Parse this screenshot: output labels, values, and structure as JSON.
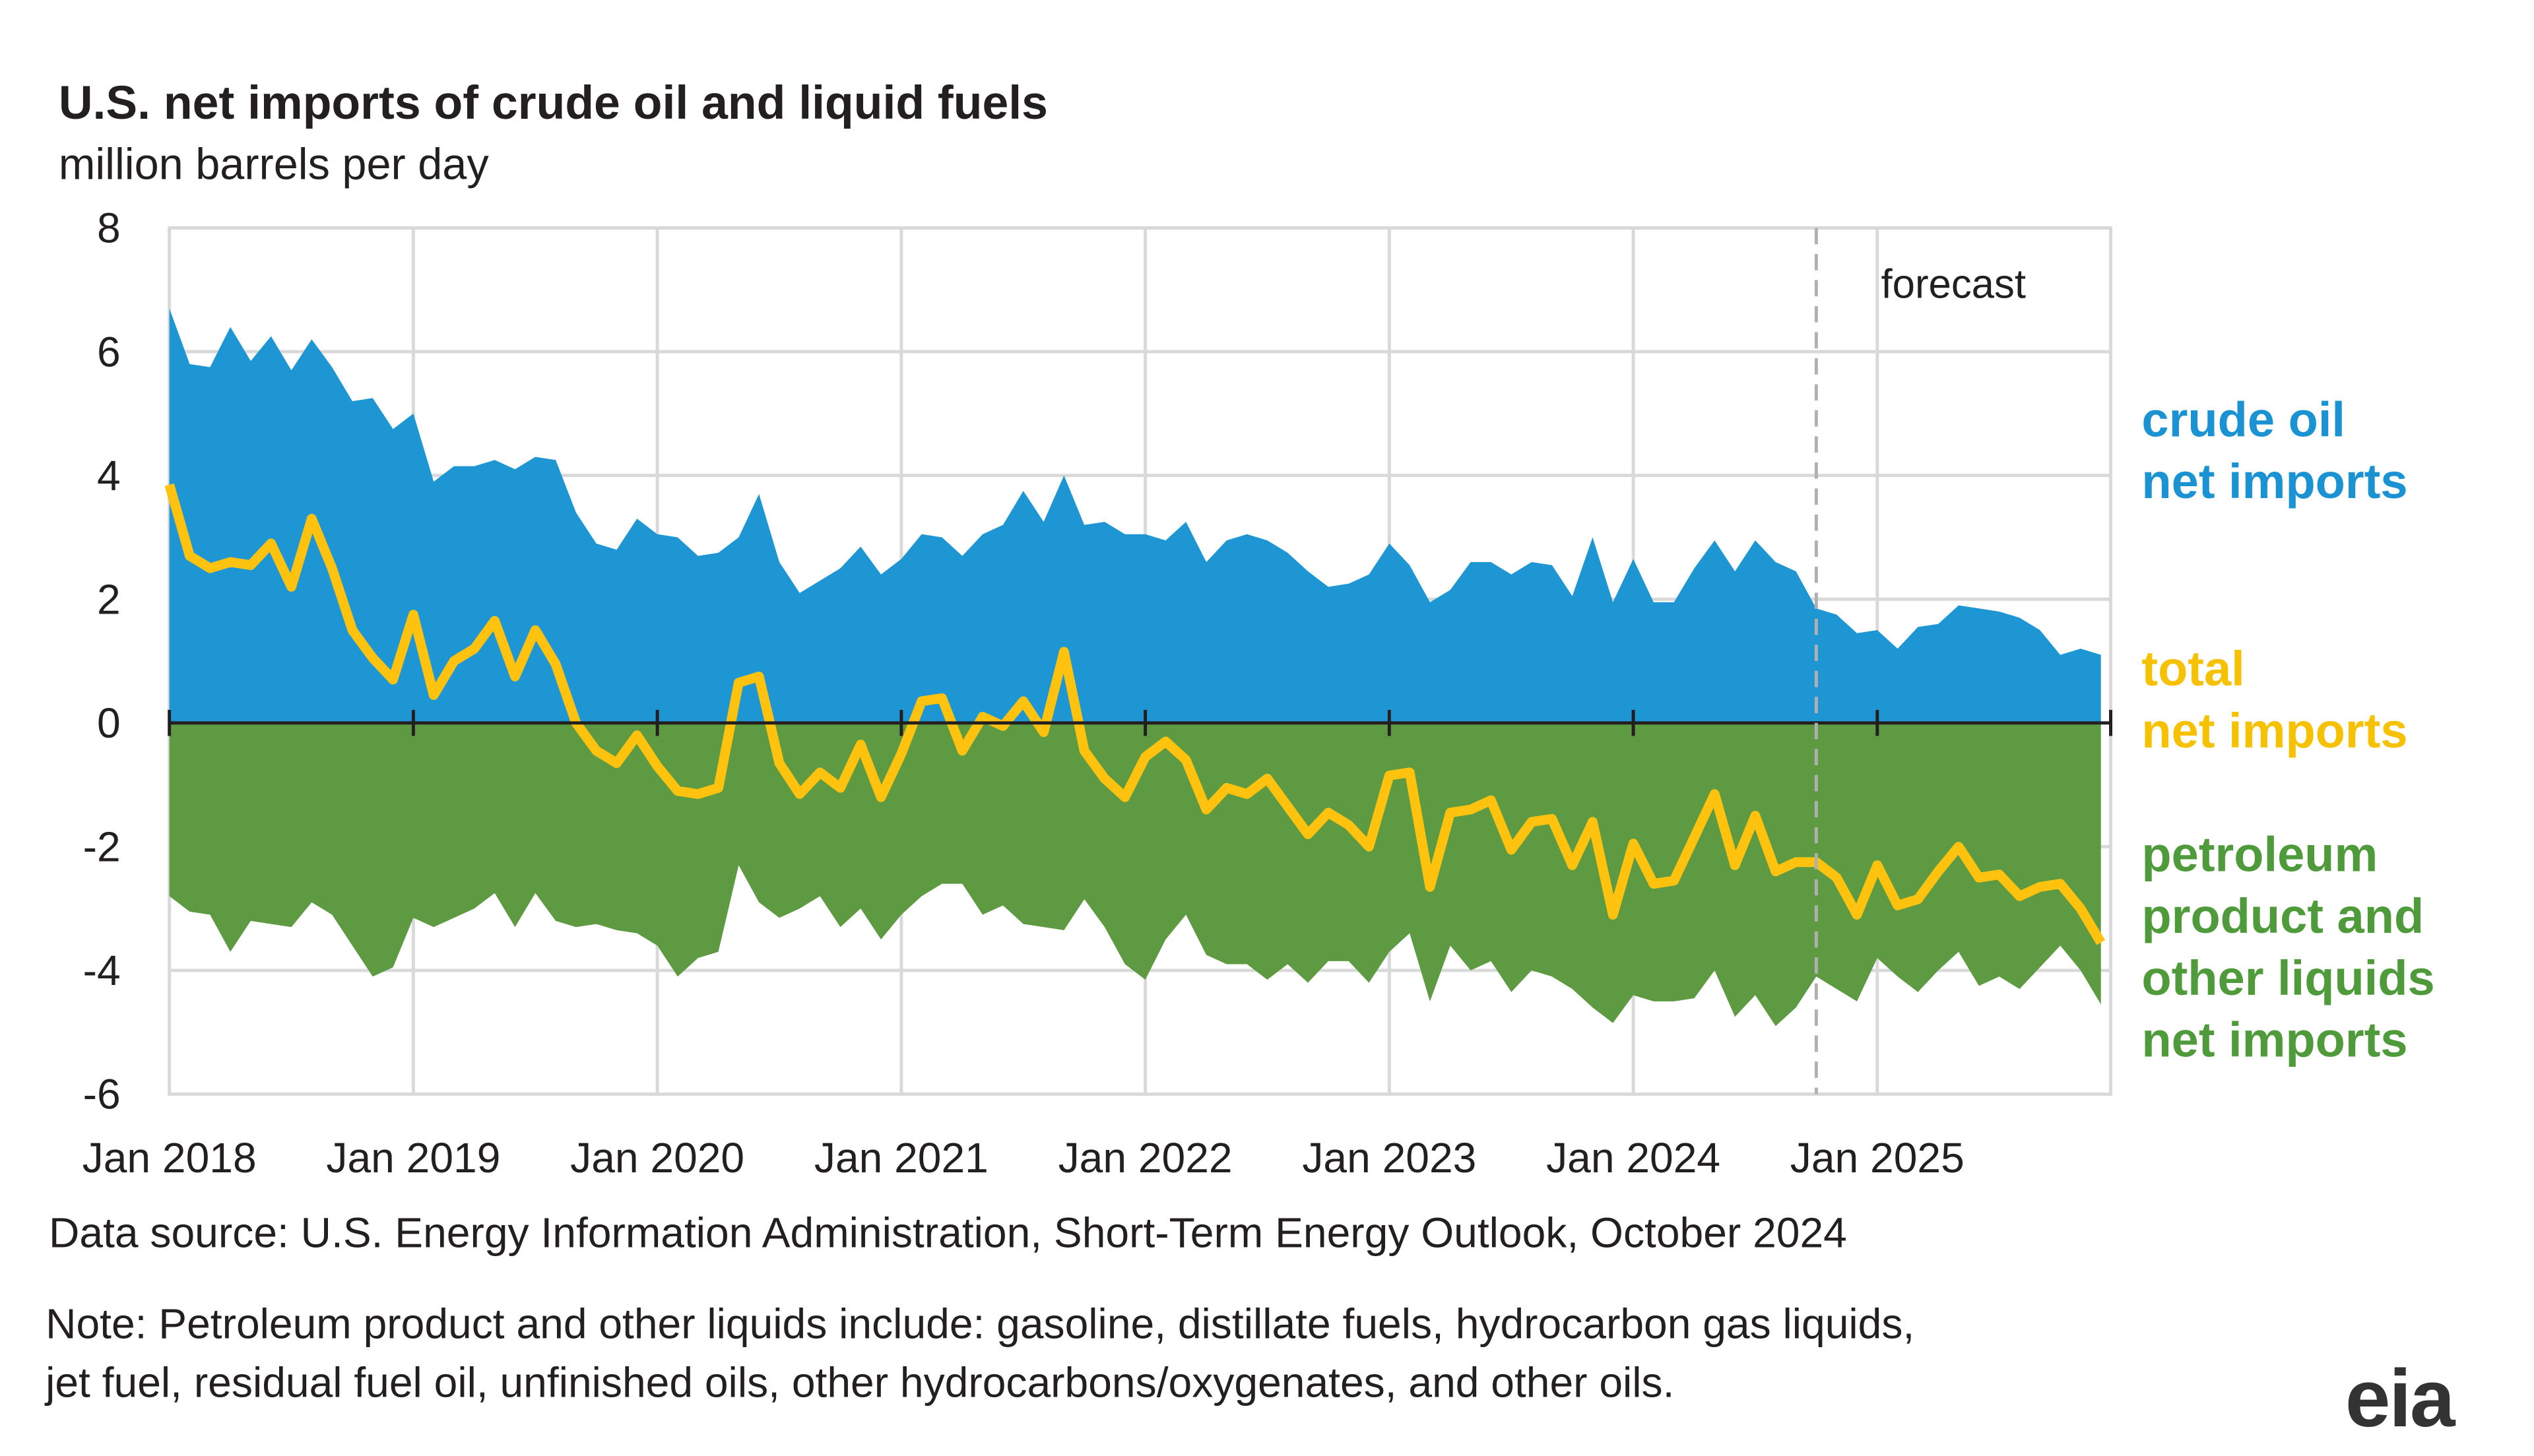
{
  "chart_data": {
    "type": "area-line",
    "title": "U.S. net imports of crude oil and liquid fuels",
    "subtitle": "million barrels per day",
    "annotation": "forecast",
    "forecast_start": "2024-10",
    "source": "Data source: U.S. Energy Information Administration, Short-Term Energy Outlook, October 2024",
    "note": "Note: Petroleum product and other liquids include: gasoline, distillate fuels, hydrocarbon gas liquids,\njet fuel, residual fuel oil, unfinished oils, other hydrocarbons/oxygenates, and other oils.",
    "logo": "eia",
    "grid": true,
    "x": [
      "2018-01",
      "2018-02",
      "2018-03",
      "2018-04",
      "2018-05",
      "2018-06",
      "2018-07",
      "2018-08",
      "2018-09",
      "2018-10",
      "2018-11",
      "2018-12",
      "2019-01",
      "2019-02",
      "2019-03",
      "2019-04",
      "2019-05",
      "2019-06",
      "2019-07",
      "2019-08",
      "2019-09",
      "2019-10",
      "2019-11",
      "2019-12",
      "2020-01",
      "2020-02",
      "2020-03",
      "2020-04",
      "2020-05",
      "2020-06",
      "2020-07",
      "2020-08",
      "2020-09",
      "2020-10",
      "2020-11",
      "2020-12",
      "2021-01",
      "2021-02",
      "2021-03",
      "2021-04",
      "2021-05",
      "2021-06",
      "2021-07",
      "2021-08",
      "2021-09",
      "2021-10",
      "2021-11",
      "2021-12",
      "2022-01",
      "2022-02",
      "2022-03",
      "2022-04",
      "2022-05",
      "2022-06",
      "2022-07",
      "2022-08",
      "2022-09",
      "2022-10",
      "2022-11",
      "2022-12",
      "2023-01",
      "2023-02",
      "2023-03",
      "2023-04",
      "2023-05",
      "2023-06",
      "2023-07",
      "2023-08",
      "2023-09",
      "2023-10",
      "2023-11",
      "2023-12",
      "2024-01",
      "2024-02",
      "2024-03",
      "2024-04",
      "2024-05",
      "2024-06",
      "2024-07",
      "2024-08",
      "2024-09",
      "2024-10",
      "2024-11",
      "2024-12",
      "2025-01",
      "2025-02",
      "2025-03",
      "2025-04",
      "2025-05",
      "2025-06",
      "2025-07",
      "2025-08",
      "2025-09",
      "2025-10",
      "2025-11",
      "2025-12"
    ],
    "xticks": [
      {
        "value": "2018-01",
        "label": "Jan 2018"
      },
      {
        "value": "2019-01",
        "label": "Jan 2019"
      },
      {
        "value": "2020-01",
        "label": "Jan 2020"
      },
      {
        "value": "2021-01",
        "label": "Jan 2021"
      },
      {
        "value": "2022-01",
        "label": "Jan 2022"
      },
      {
        "value": "2023-01",
        "label": "Jan 2023"
      },
      {
        "value": "2024-01",
        "label": "Jan 2024"
      },
      {
        "value": "2025-01",
        "label": "Jan 2025"
      }
    ],
    "ylim": [
      -6,
      8
    ],
    "yticks": [
      -6,
      -4,
      -2,
      0,
      2,
      4,
      6,
      8
    ],
    "series": [
      {
        "name": "crude oil\nnet imports",
        "kind": "area",
        "color": "#1f96d4",
        "label_color": "#1b93d3",
        "values": [
          6.7,
          5.8,
          5.75,
          6.4,
          5.85,
          6.25,
          5.7,
          6.2,
          5.75,
          5.2,
          5.25,
          4.75,
          5.0,
          3.9,
          4.15,
          4.15,
          4.25,
          4.1,
          4.3,
          4.25,
          3.4,
          2.9,
          2.8,
          3.3,
          3.05,
          3.0,
          2.7,
          2.75,
          3.0,
          3.7,
          2.6,
          2.1,
          2.3,
          2.5,
          2.85,
          2.4,
          2.65,
          3.05,
          3.0,
          2.7,
          3.05,
          3.2,
          3.75,
          3.25,
          4.0,
          3.2,
          3.25,
          3.05,
          3.05,
          2.95,
          3.25,
          2.6,
          2.95,
          3.05,
          2.95,
          2.75,
          2.45,
          2.2,
          2.25,
          2.4,
          2.9,
          2.55,
          1.95,
          2.15,
          2.6,
          2.6,
          2.4,
          2.6,
          2.55,
          2.05,
          3.0,
          1.95,
          2.65,
          1.95,
          1.95,
          2.5,
          2.95,
          2.45,
          2.95,
          2.6,
          2.45,
          1.85,
          1.75,
          1.45,
          1.5,
          1.2,
          1.55,
          1.6,
          1.9,
          1.85,
          1.8,
          1.7,
          1.5,
          1.1,
          1.2,
          1.1
        ]
      },
      {
        "name": "petroleum\nproduct and\nother liquids\nnet imports",
        "kind": "area",
        "color": "#5d9a41",
        "label_color": "#4f9a3a",
        "values": [
          -2.8,
          -3.05,
          -3.1,
          -3.7,
          -3.2,
          -3.25,
          -3.3,
          -2.9,
          -3.1,
          -3.6,
          -4.1,
          -3.95,
          -3.15,
          -3.3,
          -3.15,
          -3.0,
          -2.75,
          -3.3,
          -2.75,
          -3.2,
          -3.3,
          -3.25,
          -3.35,
          -3.4,
          -3.6,
          -4.1,
          -3.8,
          -3.7,
          -2.3,
          -2.9,
          -3.15,
          -3.0,
          -2.8,
          -3.3,
          -3.0,
          -3.5,
          -3.1,
          -2.8,
          -2.6,
          -2.6,
          -3.1,
          -2.95,
          -3.25,
          -3.3,
          -3.35,
          -2.85,
          -3.3,
          -3.9,
          -4.15,
          -3.5,
          -3.1,
          -3.75,
          -3.9,
          -3.9,
          -4.15,
          -3.9,
          -4.2,
          -3.85,
          -3.85,
          -4.2,
          -3.7,
          -3.4,
          -4.5,
          -3.6,
          -4.0,
          -3.85,
          -4.35,
          -4.0,
          -4.1,
          -4.3,
          -4.6,
          -4.85,
          -4.4,
          -4.5,
          -4.5,
          -4.45,
          -4.0,
          -4.75,
          -4.4,
          -4.9,
          -4.6,
          -4.1,
          -4.3,
          -4.5,
          -3.8,
          -4.1,
          -4.35,
          -4.0,
          -3.7,
          -4.25,
          -4.1,
          -4.3,
          -3.95,
          -3.6,
          -4.0,
          -4.55
        ]
      },
      {
        "name": "total\nnet imports",
        "kind": "line",
        "color": "#ffc20e",
        "label_color": "#f5c100",
        "values": [
          3.85,
          2.7,
          2.5,
          2.6,
          2.55,
          2.9,
          2.2,
          3.3,
          2.5,
          1.5,
          1.05,
          0.7,
          1.75,
          0.45,
          1.0,
          1.2,
          1.65,
          0.75,
          1.5,
          0.95,
          0.0,
          -0.45,
          -0.65,
          -0.2,
          -0.7,
          -1.1,
          -1.15,
          -1.05,
          0.65,
          0.75,
          -0.65,
          -1.15,
          -0.8,
          -1.05,
          -0.35,
          -1.2,
          -0.5,
          0.35,
          0.4,
          -0.45,
          0.1,
          -0.05,
          0.35,
          -0.15,
          1.15,
          -0.45,
          -0.9,
          -1.2,
          -0.55,
          -0.3,
          -0.6,
          -1.4,
          -1.05,
          -1.15,
          -0.9,
          -1.35,
          -1.8,
          -1.45,
          -1.65,
          -2.0,
          -0.85,
          -0.8,
          -2.65,
          -1.45,
          -1.4,
          -1.25,
          -2.05,
          -1.6,
          -1.55,
          -2.3,
          -1.6,
          -3.1,
          -1.95,
          -2.6,
          -2.55,
          -1.85,
          -1.15,
          -2.3,
          -1.5,
          -2.4,
          -2.25,
          -2.25,
          -2.5,
          -3.1,
          -2.3,
          -2.95,
          -2.85,
          -2.4,
          -2.0,
          -2.5,
          -2.45,
          -2.8,
          -2.65,
          -2.6,
          -3.0,
          -3.55
        ]
      }
    ]
  }
}
